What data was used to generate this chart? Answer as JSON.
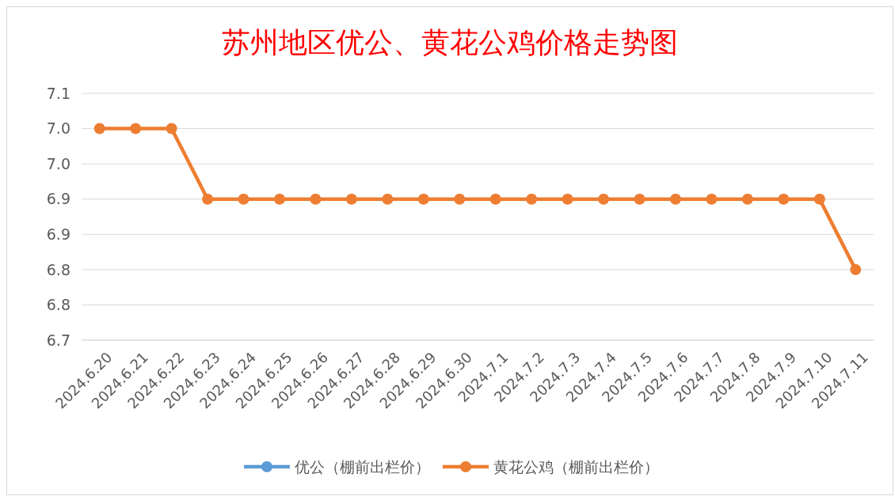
{
  "chart_data": {
    "type": "line",
    "title": "苏州地区优公、黄花公鸡价格走势图",
    "categories": [
      "2024.6.20",
      "2024.6.21",
      "2024.6.22",
      "2024.6.23",
      "2024.6.24",
      "2024.6.25",
      "2024.6.26",
      "2024.6.27",
      "2024.6.28",
      "2024.6.29",
      "2024.6.30",
      "2024.7.1",
      "2024.7.2",
      "2024.7.3",
      "2024.7.4",
      "2024.7.5",
      "2024.7.6",
      "2024.7.7",
      "2024.7.8",
      "2024.7.9",
      "2024.7.10",
      "2024.7.11"
    ],
    "series": [
      {
        "name": "优公（棚前出栏价）",
        "color": "#5b9bd5",
        "values": [
          null,
          null,
          null,
          null,
          null,
          null,
          null,
          null,
          null,
          null,
          null,
          null,
          null,
          null,
          null,
          null,
          null,
          null,
          null,
          null,
          null,
          null
        ]
      },
      {
        "name": "黄花公鸡（棚前出栏价）",
        "color": "#ed7d31",
        "values": [
          7.0,
          7.0,
          7.0,
          6.9,
          6.9,
          6.9,
          6.9,
          6.9,
          6.9,
          6.9,
          6.9,
          6.9,
          6.9,
          6.9,
          6.9,
          6.9,
          6.9,
          6.9,
          6.9,
          6.9,
          6.9,
          6.8
        ]
      }
    ],
    "ylim": [
      6.7,
      7.05
    ],
    "yticks": [
      {
        "value": 6.7,
        "label": "6.7"
      },
      {
        "value": 6.75,
        "label": "6.8"
      },
      {
        "value": 6.8,
        "label": "6.8"
      },
      {
        "value": 6.85,
        "label": "6.9"
      },
      {
        "value": 6.9,
        "label": "6.9"
      },
      {
        "value": 6.95,
        "label": "7.0"
      },
      {
        "value": 7.0,
        "label": "7.0"
      },
      {
        "value": 7.05,
        "label": "7.1"
      }
    ],
    "grid": "y",
    "legend": "bottom",
    "marker": "circle",
    "line_style": "solid"
  }
}
